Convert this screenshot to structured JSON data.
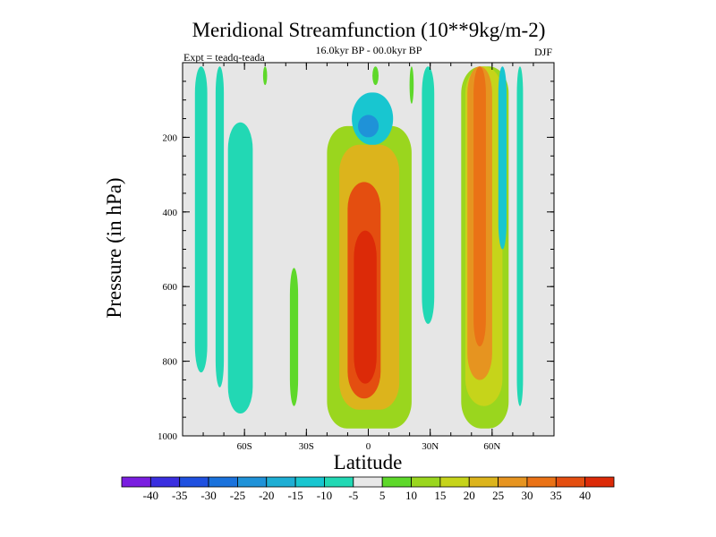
{
  "chart_data": {
    "type": "heatmap",
    "title": "Meridional Streamfunction (10**9kg/m-2)",
    "subtitle": "16.0kyr BP - 00.0kyr BP",
    "left_note": "Expt = teadq-teada",
    "right_note": "DJF",
    "xlabel": "Latitude",
    "ylabel": "Pressure (in hPa)",
    "xlim": [
      -90,
      90
    ],
    "ylim": [
      1000,
      0
    ],
    "x_ticks": [
      {
        "value": -60,
        "label": "60S"
      },
      {
        "value": -30,
        "label": "30S"
      },
      {
        "value": 0,
        "label": "0"
      },
      {
        "value": 30,
        "label": "30N"
      },
      {
        "value": 60,
        "label": "60N"
      }
    ],
    "y_ticks": [
      {
        "value": 200,
        "label": "200"
      },
      {
        "value": 400,
        "label": "400"
      },
      {
        "value": 600,
        "label": "600"
      },
      {
        "value": 800,
        "label": "800"
      },
      {
        "value": 1000,
        "label": "1000"
      }
    ],
    "background_color": "#e6e6e6",
    "colorbar": {
      "levels": [
        "-40",
        "-35",
        "-30",
        "-25",
        "-20",
        "-15",
        "-10",
        "-5",
        "5",
        "10",
        "15",
        "20",
        "25",
        "30",
        "35",
        "40"
      ],
      "colors": [
        "#7a1ee0",
        "#3a2ee0",
        "#1f50e0",
        "#1a72dc",
        "#1f92d8",
        "#1eaed4",
        "#18c6d0",
        "#22d8b4",
        "#e8e8e8",
        "#5ed82a",
        "#9ad61e",
        "#c6d41a",
        "#dcb41c",
        "#e69420",
        "#ea7216",
        "#e44e10",
        "#dc2a08"
      ]
    },
    "cells": [
      {
        "lat0": -84,
        "lat1": -78,
        "p0": 10,
        "p1": 830,
        "value": -7,
        "note": "southern high-latitude cell"
      },
      {
        "lat0": -74,
        "lat1": -70,
        "p0": 10,
        "p1": 870,
        "value": -7
      },
      {
        "lat0": -68,
        "lat1": -56,
        "p0": 160,
        "p1": 940,
        "value": -7
      },
      {
        "lat0": -51,
        "lat1": -49,
        "p0": 10,
        "p1": 60,
        "value": 7
      },
      {
        "lat0": -38,
        "lat1": -34,
        "p0": 550,
        "p1": 920,
        "value": 7
      },
      {
        "lat0": -20,
        "lat1": 21,
        "p0": 170,
        "p1": 980,
        "value": 10,
        "note": "tropical positive cell envelope"
      },
      {
        "lat0": -14,
        "lat1": 15,
        "p0": 220,
        "p1": 930,
        "value": 20
      },
      {
        "lat0": -10,
        "lat1": 6,
        "p0": 320,
        "p1": 900,
        "value": 35
      },
      {
        "lat0": -7,
        "lat1": 4,
        "p0": 450,
        "p1": 860,
        "value": 42,
        "note": "maximum near equator 700 hPa"
      },
      {
        "lat0": -8,
        "lat1": 12,
        "p0": 80,
        "p1": 220,
        "value": -12,
        "note": "upper-level negative cell"
      },
      {
        "lat0": -5,
        "lat1": 5,
        "p0": 140,
        "p1": 200,
        "value": -22
      },
      {
        "lat0": 2,
        "lat1": 5,
        "p0": 10,
        "p1": 60,
        "value": 7
      },
      {
        "lat0": 20,
        "lat1": 22,
        "p0": 10,
        "p1": 110,
        "value": 7
      },
      {
        "lat0": 26,
        "lat1": 32,
        "p0": 10,
        "p1": 700,
        "value": -7
      },
      {
        "lat0": 45,
        "lat1": 68,
        "p0": 10,
        "p1": 980,
        "value": 10,
        "note": "northern positive cell"
      },
      {
        "lat0": 47,
        "lat1": 65,
        "p0": 10,
        "p1": 920,
        "value": 18
      },
      {
        "lat0": 48,
        "lat1": 60,
        "p0": 10,
        "p1": 850,
        "value": 27
      },
      {
        "lat0": 51,
        "lat1": 57,
        "p0": 10,
        "p1": 760,
        "value": 32
      },
      {
        "lat0": 63,
        "lat1": 67,
        "p0": 10,
        "p1": 500,
        "value": -12
      },
      {
        "lat0": 72,
        "lat1": 75,
        "p0": 10,
        "p1": 920,
        "value": -7
      }
    ]
  }
}
